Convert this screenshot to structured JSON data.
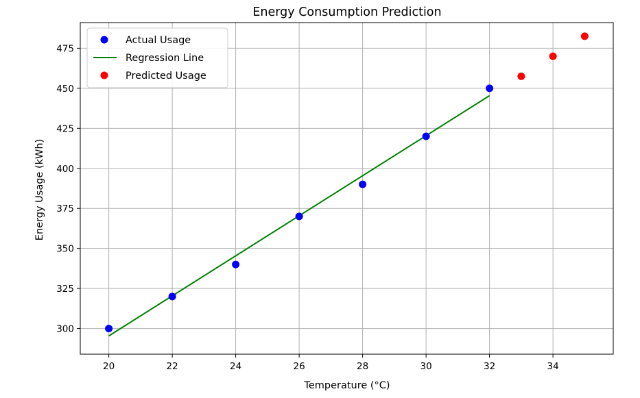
{
  "chart_data": {
    "type": "scatter",
    "title": "Energy Consumption Prediction",
    "xlabel": "Temperature (°C)",
    "ylabel": "Energy Usage (kWh)",
    "xlim": [
      19.1,
      35.9
    ],
    "ylim": [
      284,
      491
    ],
    "xticks": [
      20,
      22,
      24,
      26,
      28,
      30,
      32,
      34
    ],
    "yticks": [
      300,
      325,
      350,
      375,
      400,
      425,
      450,
      475
    ],
    "grid": true,
    "legend_position": "top-left",
    "series": [
      {
        "name": "Actual Usage",
        "kind": "scatter",
        "color": "#0000ff",
        "x": [
          20,
          22,
          24,
          26,
          28,
          30,
          32
        ],
        "y": [
          300,
          320,
          340,
          370,
          390,
          420,
          450
        ]
      },
      {
        "name": "Regression Line",
        "kind": "line",
        "color": "#008000",
        "x": [
          20,
          32
        ],
        "y": [
          295.4,
          445.4
        ]
      },
      {
        "name": "Predicted Usage",
        "kind": "scatter",
        "color": "#ff0000",
        "x": [
          33,
          34,
          35
        ],
        "y": [
          457.5,
          470,
          482.5
        ]
      }
    ]
  }
}
